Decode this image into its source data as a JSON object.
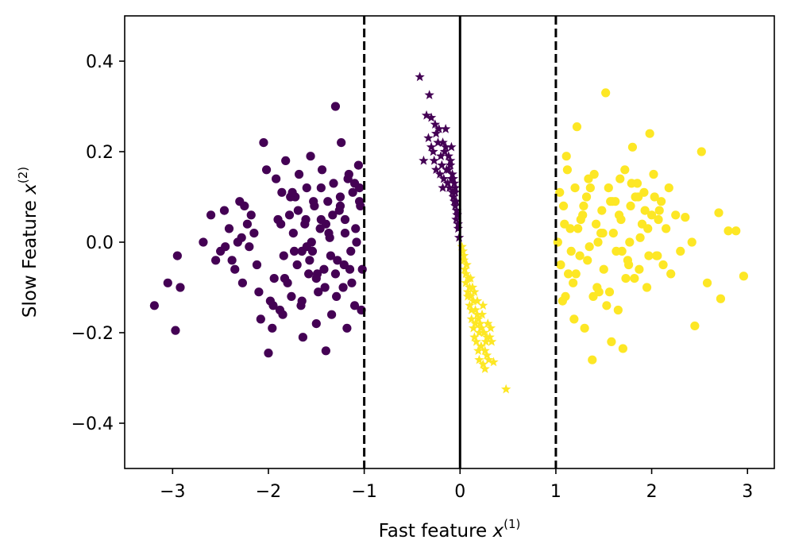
{
  "chart_data": {
    "type": "scatter",
    "xlabel": "Fast feature x(1)",
    "ylabel": "Slow Feature x(2)",
    "xlim": [
      -3.5,
      3.28
    ],
    "ylim": [
      -0.5,
      0.5
    ],
    "x_ticks": [
      -3,
      -2,
      -1,
      0,
      1,
      2,
      3
    ],
    "x_tick_labels": [
      "−3",
      "−2",
      "−1",
      "0",
      "1",
      "2",
      "3"
    ],
    "y_ticks": [
      -0.4,
      -0.2,
      0.0,
      0.2,
      0.4
    ],
    "y_tick_labels": [
      "−0.4",
      "−0.2",
      "0.0",
      "0.2",
      "0.4"
    ],
    "grid": false,
    "colors": {
      "class_0": "#440154",
      "class_1": "#fde725"
    },
    "vertical_lines": [
      {
        "x": -1,
        "style": "dashed"
      },
      {
        "x": 0,
        "style": "solid"
      },
      {
        "x": 1,
        "style": "dashed"
      }
    ],
    "series": [
      {
        "class": 0,
        "marker": "circle",
        "x": [
          -3.19,
          -3.05,
          -2.97,
          -2.92,
          -2.68,
          -2.55,
          -2.5,
          -2.46,
          -2.41,
          -2.38,
          -2.35,
          -2.32,
          -2.3,
          -2.27,
          -2.25,
          -2.22,
          -2.2,
          -2.18,
          -2.15,
          -2.12,
          -2.1,
          -2.08,
          -2.05,
          -2.02,
          -2.0,
          -1.98,
          -1.96,
          -1.94,
          -1.92,
          -1.9,
          -1.88,
          -1.86,
          -1.84,
          -1.82,
          -1.8,
          -1.78,
          -1.76,
          -1.74,
          -1.72,
          -1.7,
          -1.68,
          -1.66,
          -1.64,
          -1.62,
          -1.6,
          -1.58,
          -1.56,
          -1.54,
          -1.52,
          -1.5,
          -1.48,
          -1.46,
          -1.44,
          -1.42,
          -1.4,
          -1.38,
          -1.36,
          -1.34,
          -1.32,
          -1.3,
          -1.28,
          -1.26,
          -1.24,
          -1.22,
          -1.2,
          -1.18,
          -1.16,
          -1.14,
          -1.12,
          -1.1,
          -1.08,
          -1.06,
          -1.04,
          -1.02,
          -2.95,
          -2.6,
          -2.45,
          -2.28,
          -1.95,
          -1.87,
          -1.83,
          -1.77,
          -1.73,
          -1.69,
          -1.65,
          -1.61,
          -1.57,
          -1.53,
          -1.49,
          -1.45,
          -1.41,
          -1.37,
          -1.33,
          -1.29,
          -1.25,
          -1.21,
          -1.17,
          -1.13,
          -1.09,
          -1.05,
          -1.03,
          -1.55,
          -1.45,
          -1.35,
          -1.25,
          -1.15,
          -1.05,
          -1.65,
          -1.75,
          -1.85,
          -1.4,
          -1.3,
          -1.2,
          -1.1,
          -1.5,
          -1.6
        ],
        "y": [
          -0.14,
          -0.09,
          -0.195,
          -0.1,
          0.0,
          -0.04,
          -0.02,
          0.07,
          0.03,
          -0.04,
          -0.06,
          0.0,
          0.09,
          -0.09,
          0.08,
          0.04,
          -0.01,
          0.06,
          0.02,
          -0.05,
          -0.11,
          -0.17,
          0.22,
          0.16,
          -0.245,
          -0.13,
          -0.19,
          -0.08,
          0.14,
          0.05,
          -0.15,
          0.11,
          -0.03,
          0.18,
          -0.09,
          0.06,
          -0.12,
          0.02,
          0.1,
          -0.05,
          0.15,
          -0.14,
          -0.21,
          0.04,
          0.12,
          -0.07,
          0.19,
          -0.02,
          0.08,
          -0.18,
          -0.11,
          0.03,
          0.16,
          -0.06,
          -0.24,
          0.09,
          0.01,
          -0.16,
          0.13,
          0.3,
          -0.04,
          0.07,
          0.22,
          -0.1,
          0.05,
          -0.19,
          0.15,
          -0.02,
          0.11,
          -0.14,
          0.0,
          0.17,
          0.08,
          -0.06,
          -0.03,
          0.06,
          -0.01,
          0.01,
          -0.14,
          0.04,
          -0.08,
          0.1,
          -0.02,
          0.07,
          -0.13,
          0.05,
          -0.04,
          0.09,
          -0.07,
          0.12,
          -0.1,
          0.02,
          0.06,
          -0.12,
          0.1,
          -0.05,
          0.14,
          -0.09,
          0.03,
          0.12,
          -0.15,
          0.0,
          0.05,
          -0.03,
          0.08,
          -0.06,
          0.09,
          -0.02,
          0.11,
          -0.16,
          0.04,
          -0.07,
          0.02,
          0.13,
          -0.08,
          -0.01
        ]
      },
      {
        "class": 0,
        "marker": "star",
        "x": [
          -0.42,
          -0.35,
          -0.32,
          -0.3,
          -0.26,
          -0.22,
          -0.18,
          -0.15,
          -0.12,
          -0.1,
          -0.08,
          -0.06,
          -0.05,
          -0.04,
          -0.03,
          -0.02,
          -0.01,
          -0.38,
          -0.33,
          -0.28,
          -0.25,
          -0.2,
          -0.17,
          -0.14,
          -0.11,
          -0.09,
          -0.07,
          -0.05,
          -0.035,
          -0.02,
          -0.3,
          -0.27,
          -0.23,
          -0.19,
          -0.16,
          -0.13,
          -0.1,
          -0.08,
          -0.06,
          -0.04,
          -0.25,
          -0.21,
          -0.18,
          -0.15,
          -0.12,
          -0.09,
          -0.07,
          -0.05,
          -0.03
        ],
        "y": [
          0.365,
          0.28,
          0.325,
          0.275,
          0.26,
          0.25,
          0.22,
          0.21,
          0.19,
          0.17,
          0.15,
          0.13,
          0.11,
          0.09,
          0.06,
          0.04,
          0.01,
          0.18,
          0.23,
          0.2,
          0.16,
          0.19,
          0.14,
          0.16,
          0.12,
          0.14,
          0.1,
          0.08,
          0.07,
          0.03,
          0.21,
          0.18,
          0.22,
          0.17,
          0.2,
          0.13,
          0.18,
          0.11,
          0.09,
          0.05,
          0.24,
          0.15,
          0.12,
          0.25,
          0.16,
          0.21,
          0.14,
          0.12,
          0.06
        ]
      },
      {
        "class": 1,
        "marker": "circle",
        "x": [
          1.02,
          1.05,
          1.08,
          1.1,
          1.12,
          1.15,
          1.18,
          1.2,
          1.22,
          1.25,
          1.28,
          1.3,
          1.32,
          1.35,
          1.38,
          1.4,
          1.42,
          1.45,
          1.48,
          1.5,
          1.52,
          1.55,
          1.58,
          1.6,
          1.62,
          1.65,
          1.68,
          1.7,
          1.72,
          1.75,
          1.78,
          1.8,
          1.82,
          1.85,
          1.88,
          1.9,
          1.92,
          1.95,
          1.98,
          2.0,
          2.02,
          2.05,
          2.08,
          2.1,
          2.12,
          2.15,
          2.18,
          2.2,
          2.25,
          2.3,
          2.35,
          2.42,
          2.45,
          2.52,
          2.58,
          2.7,
          2.72,
          2.8,
          2.88,
          2.96,
          1.04,
          1.07,
          1.11,
          1.16,
          1.21,
          1.26,
          1.33,
          1.36,
          1.43,
          1.47,
          1.53,
          1.57,
          1.63,
          1.67,
          1.73,
          1.77,
          1.83,
          1.87,
          1.93,
          1.97,
          2.03,
          2.07,
          1.13,
          1.23,
          1.34,
          1.44,
          1.56,
          1.66,
          1.76,
          1.86,
          1.96,
          2.06,
          1.09,
          1.19,
          1.29,
          1.39,
          1.49,
          1.59,
          1.69,
          1.79
        ],
        "y": [
          0.0,
          -0.05,
          0.08,
          -0.12,
          0.16,
          0.03,
          -0.09,
          0.12,
          0.255,
          -0.03,
          0.06,
          -0.19,
          0.1,
          -0.01,
          -0.26,
          0.15,
          0.04,
          -0.11,
          0.07,
          -0.06,
          0.33,
          0.12,
          -0.22,
          0.02,
          0.09,
          -0.15,
          0.05,
          -0.235,
          0.16,
          -0.04,
          0.08,
          0.21,
          -0.08,
          0.13,
          0.01,
          0.04,
          0.11,
          -0.1,
          0.24,
          0.06,
          0.15,
          -0.03,
          0.07,
          0.09,
          -0.05,
          0.03,
          0.12,
          -0.07,
          0.06,
          -0.02,
          0.055,
          0.0,
          -0.185,
          0.2,
          -0.09,
          0.065,
          -0.125,
          0.025,
          0.025,
          -0.075,
          0.11,
          -0.13,
          0.19,
          -0.02,
          -0.07,
          0.05,
          -0.04,
          0.12,
          -0.1,
          0.02,
          -0.14,
          0.09,
          -0.02,
          0.14,
          -0.08,
          0.0,
          0.1,
          -0.06,
          0.07,
          -0.03,
          0.1,
          0.05,
          -0.07,
          0.03,
          0.14,
          0.0,
          -0.11,
          0.06,
          -0.05,
          0.1,
          0.03,
          -0.03,
          0.04,
          -0.17,
          0.08,
          -0.12,
          0.02,
          0.09,
          -0.02,
          0.13
        ]
      },
      {
        "class": 1,
        "marker": "star",
        "x": [
          0.02,
          0.04,
          0.05,
          0.06,
          0.08,
          0.1,
          0.12,
          0.14,
          0.15,
          0.17,
          0.19,
          0.2,
          0.22,
          0.24,
          0.26,
          0.28,
          0.3,
          0.33,
          0.35,
          0.48,
          0.03,
          0.07,
          0.09,
          0.11,
          0.13,
          0.16,
          0.18,
          0.21,
          0.23,
          0.25,
          0.27,
          0.29,
          0.31,
          0.06,
          0.1,
          0.14,
          0.18,
          0.22,
          0.26,
          0.04,
          0.08,
          0.12,
          0.16,
          0.2,
          0.24,
          0.28,
          0.32,
          0.11,
          0.15,
          0.19
        ],
        "y": [
          -0.01,
          -0.03,
          -0.06,
          -0.09,
          -0.11,
          -0.14,
          -0.17,
          -0.19,
          -0.21,
          -0.22,
          -0.24,
          -0.26,
          -0.23,
          -0.27,
          -0.28,
          -0.25,
          -0.26,
          -0.22,
          -0.265,
          -0.325,
          -0.02,
          -0.05,
          -0.08,
          -0.12,
          -0.1,
          -0.15,
          -0.13,
          -0.18,
          -0.16,
          -0.2,
          -0.22,
          -0.18,
          -0.21,
          -0.07,
          -0.1,
          -0.13,
          -0.16,
          -0.19,
          -0.24,
          -0.04,
          -0.12,
          -0.15,
          -0.18,
          -0.2,
          -0.14,
          -0.21,
          -0.19,
          -0.08,
          -0.11,
          -0.17
        ]
      }
    ]
  }
}
